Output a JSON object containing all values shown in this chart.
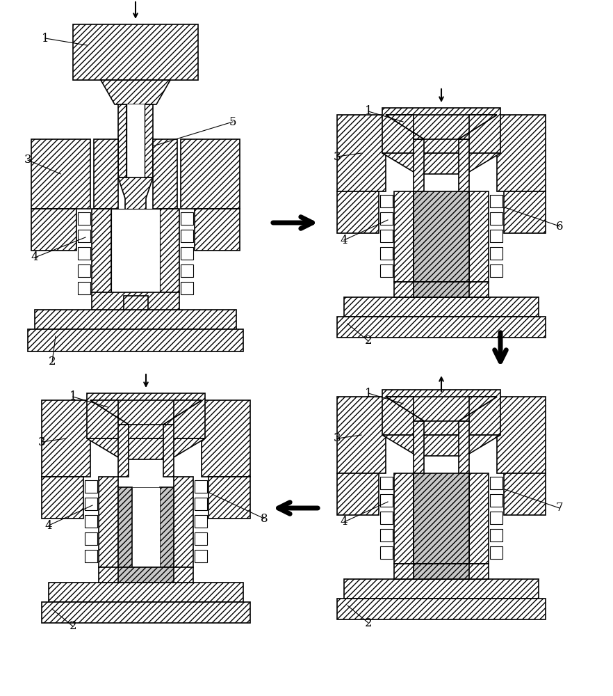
{
  "bg_color": "#ffffff",
  "hatch": "////",
  "mat_hatch": "////",
  "die_fc": "#ffffff",
  "mat_fc": "#c8c8c8",
  "ec": "#000000",
  "lw": 1.2,
  "label_fs": 12,
  "sq_size": 0.18,
  "n_sq": 5
}
